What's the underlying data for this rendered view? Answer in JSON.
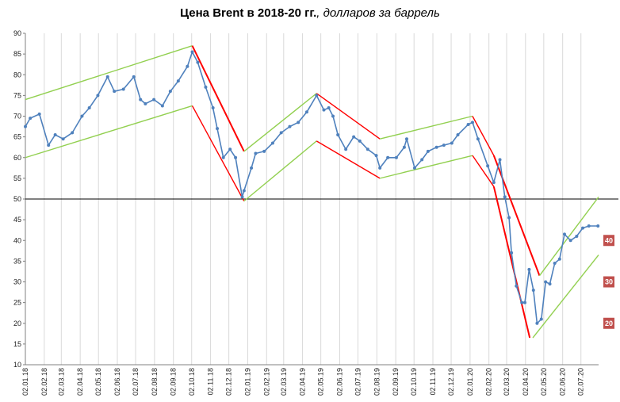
{
  "chart_data": {
    "type": "line",
    "title": "Цена Brent в 2018-20 гг.",
    "subtitle": ", долларов за баррель",
    "xlabel": "",
    "ylabel": "",
    "ylim": [
      10,
      90
    ],
    "yticks": [
      10,
      15,
      20,
      25,
      30,
      35,
      40,
      45,
      50,
      55,
      60,
      65,
      70,
      75,
      80,
      85,
      90
    ],
    "xlim": [
      "2018-01-02",
      "2020-07-31"
    ],
    "xticks": [
      "02.01.18",
      "02.02.18",
      "02.03.18",
      "02.04.18",
      "02.05.18",
      "02.06.18",
      "02.07.18",
      "02.08.18",
      "02.09.18",
      "02.10.18",
      "02.11.18",
      "02.12.18",
      "02.01.19",
      "02.02.19",
      "02.03.19",
      "02.04.19",
      "02.05.19",
      "02.06.19",
      "02.07.19",
      "02.08.19",
      "02.09.19",
      "02.10.19",
      "02.11.19",
      "02.12.19",
      "02.01.20",
      "02.02.20",
      "02.03.20",
      "02.04.20",
      "02.05.20",
      "02.06.20",
      "02.07.20"
    ],
    "grid": {
      "vertical": true,
      "horizontal": false
    },
    "reference_line": 50,
    "series": [
      {
        "color": "#4f81bd",
        "x": [
          "2018-01-02",
          "2018-01-10",
          "2018-01-25",
          "2018-02-09",
          "2018-02-20",
          "2018-03-05",
          "2018-03-20",
          "2018-04-05",
          "2018-04-17",
          "2018-05-01",
          "2018-05-17",
          "2018-05-28",
          "2018-06-12",
          "2018-06-29",
          "2018-07-10",
          "2018-07-18",
          "2018-08-01",
          "2018-08-15",
          "2018-08-28",
          "2018-09-10",
          "2018-09-25",
          "2018-10-03",
          "2018-10-12",
          "2018-10-25",
          "2018-11-06",
          "2018-11-13",
          "2018-11-23",
          "2018-12-04",
          "2018-12-13",
          "2018-12-24",
          "2018-12-27",
          "2019-01-08",
          "2019-01-15",
          "2019-01-29",
          "2019-02-12",
          "2019-02-26",
          "2019-03-12",
          "2019-03-26",
          "2019-04-09",
          "2019-04-25",
          "2019-05-07",
          "2019-05-15",
          "2019-05-22",
          "2019-05-30",
          "2019-06-12",
          "2019-06-25",
          "2019-07-05",
          "2019-07-18",
          "2019-08-01",
          "2019-08-07",
          "2019-08-20",
          "2019-09-03",
          "2019-09-16",
          "2019-09-20",
          "2019-10-03",
          "2019-10-15",
          "2019-10-25",
          "2019-11-08",
          "2019-11-20",
          "2019-12-03",
          "2019-12-13",
          "2019-12-30",
          "2020-01-06",
          "2020-01-15",
          "2020-01-31",
          "2020-02-10",
          "2020-02-20",
          "2020-02-28",
          "2020-03-06",
          "2020-03-10",
          "2020-03-18",
          "2020-03-27",
          "2020-04-01",
          "2020-04-08",
          "2020-04-15",
          "2020-04-21",
          "2020-04-28",
          "2020-05-05",
          "2020-05-12",
          "2020-05-20",
          "2020-05-28",
          "2020-06-05",
          "2020-06-15",
          "2020-06-25",
          "2020-07-05",
          "2020-07-15",
          "2020-07-30"
        ],
        "values": [
          67.5,
          69.5,
          70.5,
          63.0,
          65.5,
          64.5,
          66.0,
          70.0,
          72.0,
          75.0,
          79.5,
          76.0,
          76.5,
          79.5,
          74.0,
          73.0,
          74.0,
          72.5,
          76.0,
          78.5,
          82.0,
          85.5,
          83.0,
          77.0,
          72.0,
          67.0,
          60.0,
          62.0,
          60.0,
          50.5,
          52.0,
          57.5,
          61.0,
          61.5,
          63.5,
          66.0,
          67.5,
          68.5,
          71.0,
          75.0,
          71.5,
          72.0,
          70.0,
          65.5,
          62.0,
          65.0,
          64.0,
          62.0,
          60.5,
          57.5,
          60.0,
          60.0,
          62.5,
          64.5,
          57.5,
          59.5,
          61.5,
          62.5,
          63.0,
          63.5,
          65.5,
          68.0,
          68.5,
          64.5,
          58.0,
          54.0,
          59.5,
          50.5,
          45.5,
          37.0,
          29.0,
          25.0,
          25.0,
          33.0,
          28.0,
          20.0,
          21.0,
          30.0,
          29.5,
          34.5,
          35.5,
          41.5,
          40.0,
          41.0,
          43.0,
          43.5,
          43.5
        ]
      }
    ],
    "annotation_lines": [
      {
        "color": "#92d050",
        "x": [
          "2018-01-02",
          "2018-10-03"
        ],
        "values": [
          74.0,
          87.0
        ]
      },
      {
        "color": "#92d050",
        "x": [
          "2018-01-02",
          "2018-10-03"
        ],
        "values": [
          60.0,
          72.5
        ]
      },
      {
        "color": "#ff0000",
        "x": [
          "2018-10-03",
          "2018-12-27"
        ],
        "values": [
          87.0,
          61.5
        ]
      },
      {
        "color": "#ff0000",
        "x": [
          "2018-10-03",
          "2018-12-27"
        ],
        "values": [
          72.5,
          49.5
        ]
      },
      {
        "color": "#92d050",
        "x": [
          "2018-12-27",
          "2019-04-25"
        ],
        "values": [
          61.5,
          75.5
        ]
      },
      {
        "color": "#92d050",
        "x": [
          "2018-12-27",
          "2019-04-25"
        ],
        "values": [
          49.5,
          64.0
        ]
      },
      {
        "color": "#ff0000",
        "x": [
          "2019-04-25",
          "2019-08-07"
        ],
        "values": [
          75.5,
          64.5
        ]
      },
      {
        "color": "#ff0000",
        "x": [
          "2019-04-25",
          "2019-08-07"
        ],
        "values": [
          64.0,
          55.0
        ]
      },
      {
        "color": "#92d050",
        "x": [
          "2019-08-07",
          "2020-01-06"
        ],
        "values": [
          64.5,
          70.0
        ]
      },
      {
        "color": "#92d050",
        "x": [
          "2019-08-07",
          "2020-01-06"
        ],
        "values": [
          55.0,
          60.5
        ]
      },
      {
        "color": "#ff0000",
        "x": [
          "2020-01-06",
          "2020-02-10"
        ],
        "values": [
          70.0,
          60.5
        ]
      },
      {
        "color": "#ff0000",
        "x": [
          "2020-01-06",
          "2020-02-10"
        ],
        "values": [
          60.5,
          53.0
        ]
      },
      {
        "color": "#ff0000",
        "x": [
          "2020-02-10",
          "2020-04-25"
        ],
        "values": [
          60.5,
          31.5
        ]
      },
      {
        "color": "#ff0000",
        "x": [
          "2020-02-10",
          "2020-04-09"
        ],
        "values": [
          53.0,
          16.5
        ]
      },
      {
        "color": "#92d050",
        "x": [
          "2020-04-25",
          "2020-07-31"
        ],
        "values": [
          31.5,
          50.5
        ]
      },
      {
        "color": "#92d050",
        "x": [
          "2020-04-14",
          "2020-07-31"
        ],
        "values": [
          16.5,
          36.5
        ]
      }
    ],
    "badges": [
      {
        "label": "40",
        "value": 40,
        "color": "#c0504d"
      },
      {
        "label": "30",
        "value": 30,
        "color": "#c0504d"
      },
      {
        "label": "20",
        "value": 20,
        "color": "#c0504d"
      }
    ]
  }
}
